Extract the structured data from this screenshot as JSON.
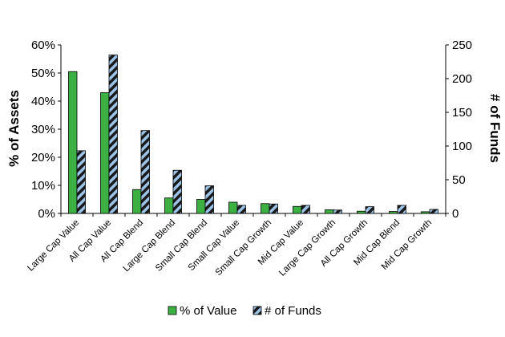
{
  "chart_data": {
    "type": "bar",
    "categories": [
      "Large Cap Value",
      "All Cap Value",
      "All Cap Blend",
      "Large Cap Blend",
      "Small Cap Blend",
      "Small Cap Value",
      "Small Cap Growth",
      "Mid Cap Value",
      "Large Cap Growth",
      "All Cap Growth",
      "Mid Cap Blend",
      "Mid Cap Growth"
    ],
    "series": [
      {
        "name": "% of Value",
        "axis": "left",
        "unit": "%",
        "color": "#3cb043",
        "pattern": "solid",
        "values": [
          50.5,
          43.0,
          8.5,
          5.5,
          5.0,
          4.0,
          3.5,
          2.5,
          1.3,
          0.8,
          0.7,
          0.6
        ]
      },
      {
        "name": "# of Funds",
        "axis": "right",
        "color": "#9dc3e6",
        "pattern": "black-diagonal-hatch",
        "values": [
          93,
          235,
          123,
          64,
          41,
          12,
          14,
          12,
          5,
          10,
          12,
          6
        ]
      }
    ],
    "ylabel": "% of Assets",
    "y2label": "# of Funds",
    "xlabel": "",
    "title": "",
    "ylim": [
      0,
      60
    ],
    "y2lim": [
      0,
      250
    ],
    "yticks": [
      "0%",
      "10%",
      "20%",
      "30%",
      "40%",
      "50%",
      "60%"
    ],
    "y2ticks": [
      "0",
      "50",
      "100",
      "150",
      "200",
      "250"
    ],
    "grid": false,
    "legend_position": "bottom"
  }
}
